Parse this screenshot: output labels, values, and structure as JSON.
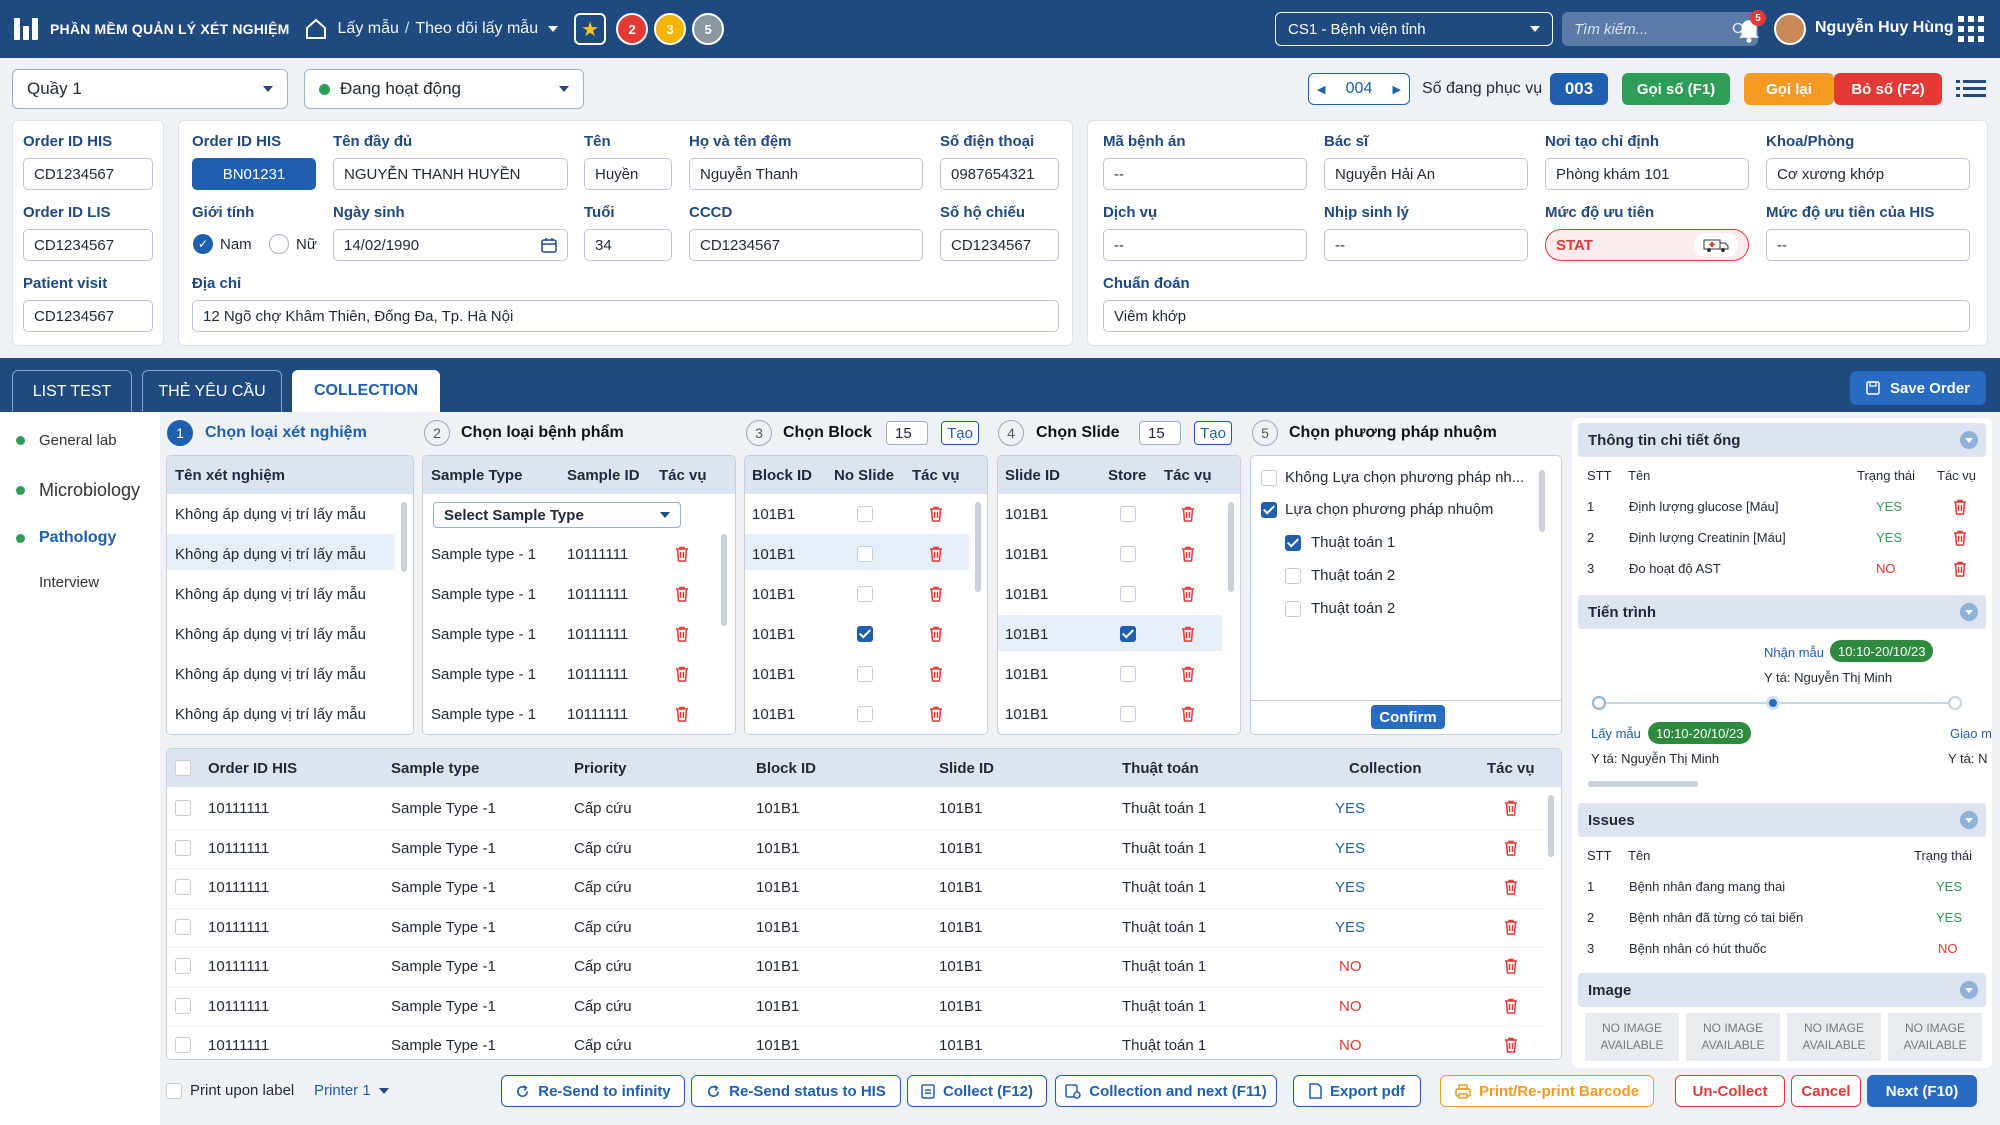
{
  "header": {
    "app_title": "PHẦN MỀM QUẢN LÝ XÉT NGHIỆM",
    "breadcrumb": [
      "Lấy mẫu",
      "Theo dõi lấy mẫu"
    ],
    "badges": [
      "2",
      "3",
      "5"
    ],
    "site": "CS1 - Bệnh viện tỉnh",
    "search_placeholder": "Tìm kiếm...",
    "notif_count": "5",
    "user": "Nguyễn Huy Hùng"
  },
  "toolbar": {
    "counter": "Quầy 1",
    "status": "Đang hoạt động",
    "queue_number": "004",
    "serving_label": "Số đang phục vụ",
    "serving_number": "003",
    "call_btn": "Gọi số (F1)",
    "recall_btn": "Gọi lại",
    "skip_btn": "Bỏ số (F2)"
  },
  "order_ids": {
    "his_label": "Order ID HIS",
    "his": "CD1234567",
    "lis_label": "Order ID LIS",
    "lis": "CD1234567",
    "visit_label": "Patient visit",
    "visit": "CD1234567"
  },
  "patient": {
    "his_label": "Order ID HIS",
    "his": "BN01231",
    "fullname_label": "Tên đầy đủ",
    "fullname": "NGUYỄN THANH HUYỀN",
    "name_label": "Tên",
    "name": "Huyền",
    "surname_label": "Họ và tên đệm",
    "surname": "Nguyễn Thanh",
    "phone_label": "Số điện thoại",
    "phone": "0987654321",
    "gender_label": "Giới tính",
    "male": "Nam",
    "female": "Nữ",
    "dob_label": "Ngày sinh",
    "dob": "14/02/1990",
    "age_label": "Tuổi",
    "age": "34",
    "id_label": "CCCD",
    "id": "CD1234567",
    "passport_label": "Số hộ chiếu",
    "passport": "CD1234567",
    "address_label": "Địa chỉ",
    "address": "12 Ngõ chợ Khâm Thiên, Đống Đa, Tp. Hà Nội"
  },
  "clinical": {
    "record_label": "Mã bệnh án",
    "record": "--",
    "doctor_label": "Bác sĩ",
    "doctor": "Nguyễn Hải An",
    "origin_label": "Nơi tạo chỉ định",
    "origin": "Phòng khám 101",
    "dept_label": "Khoa/Phòng",
    "dept": "Cơ xương khớp",
    "service_label": "Dịch vụ",
    "service": "--",
    "vitals_label": "Nhịp sinh lý",
    "vitals": "--",
    "priority_label": "Mức độ ưu tiên",
    "priority": "STAT",
    "his_priority_label": "Mức độ ưu tiên của HIS",
    "his_priority": "--",
    "diagnosis_label": "Chuẩn đoán",
    "diagnosis": "Viêm khớp"
  },
  "tabs": [
    "LIST TEST",
    "THẺ YÊU CẦU",
    "COLLECTION"
  ],
  "save_order": "Save Order",
  "nav": [
    "General lab",
    "Microbiology",
    "Pathology",
    "Interview"
  ],
  "steps": {
    "s1": "Chọn loại xét nghiệm",
    "s2": "Chọn loại bệnh phẩm",
    "s3": "Chọn Block",
    "s4": "Chọn Slide",
    "s5": "Chọn phương pháp nhuộm",
    "block_count": "15",
    "slide_count": "15",
    "create": "Tạo"
  },
  "test_table": {
    "header": "Tên xét nghiệm",
    "rows": [
      "Không áp dụng vị trí lấy mẫu",
      "Không áp dụng vị trí lấy mẫu",
      "Không áp dụng vị trí lấy mẫu",
      "Không áp dụng vị trí lấy mẫu",
      "Không áp dụng vị trí lấy mẫu",
      "Không áp dụng vị trí lấy mẫu"
    ]
  },
  "sample_table": {
    "headers": [
      "Sample Type",
      "Sample ID",
      "Tác vụ"
    ],
    "select": "Select Sample Type",
    "rows": [
      [
        "Sample type - 1",
        "10111111"
      ],
      [
        "Sample type - 1",
        "10111111"
      ],
      [
        "Sample type - 1",
        "10111111"
      ],
      [
        "Sample type - 1",
        "10111111"
      ],
      [
        "Sample type - 1",
        "10111111"
      ]
    ]
  },
  "block_table": {
    "headers": [
      "Block ID",
      "No Slide",
      "Tác vụ"
    ],
    "rows": [
      "101B1",
      "101B1",
      "101B1",
      "101B1",
      "101B1",
      "101B1"
    ]
  },
  "slide_table": {
    "headers": [
      "Slide ID",
      "Store",
      "Tác vụ"
    ],
    "rows": [
      "101B1",
      "101B1",
      "101B1",
      "101B1",
      "101B1",
      "101B1"
    ]
  },
  "stain": {
    "opt1": "Không Lựa chọn phương pháp nh...",
    "opt2": "Lựa chọn phương pháp nhuộm",
    "algos": [
      "Thuật toán 1",
      "Thuật toán 2",
      "Thuật toán 2"
    ],
    "confirm": "Confirm"
  },
  "main_table": {
    "headers": [
      "Order ID HIS",
      "Sample type",
      "Priority",
      "Block ID",
      "Slide ID",
      "Thuật toán",
      "Collection",
      "Tác vụ"
    ],
    "rows": [
      [
        "10111111",
        "Sample Type -1",
        "Cấp cứu",
        "101B1",
        "101B1",
        "Thuật toán 1",
        "YES"
      ],
      [
        "10111111",
        "Sample Type -1",
        "Cấp cứu",
        "101B1",
        "101B1",
        "Thuật toán 1",
        "YES"
      ],
      [
        "10111111",
        "Sample Type -1",
        "Cấp cứu",
        "101B1",
        "101B1",
        "Thuật toán 1",
        "YES"
      ],
      [
        "10111111",
        "Sample Type -1",
        "Cấp cứu",
        "101B1",
        "101B1",
        "Thuật toán 1",
        "YES"
      ],
      [
        "10111111",
        "Sample Type -1",
        "Cấp cứu",
        "101B1",
        "101B1",
        "Thuật toán 1",
        "NO"
      ],
      [
        "10111111",
        "Sample Type -1",
        "Cấp cứu",
        "101B1",
        "101B1",
        "Thuật toán 1",
        "NO"
      ],
      [
        "10111111",
        "Sample Type -1",
        "Cấp cứu",
        "101B1",
        "101B1",
        "Thuật toán 1",
        "NO"
      ]
    ]
  },
  "footer": {
    "print_label": "Print upon label",
    "printer": "Printer 1",
    "resend_inf": "Re-Send to infinity",
    "resend_his": "Re-Send status to HIS",
    "collect": "Collect (F12)",
    "collect_next": "Collection and next (F11)",
    "export": "Export pdf",
    "print": "Print/Re-print Barcode",
    "uncollect": "Un-Collect",
    "cancel": "Cancel",
    "next": "Next (F10)"
  },
  "right": {
    "tube_title": "Thông tin chi tiết ống",
    "tube_headers": [
      "STT",
      "Tên",
      "Trạng thái",
      "Tác vụ"
    ],
    "tubes": [
      [
        "1",
        "Định lượng glucose [Máu]",
        "YES"
      ],
      [
        "2",
        "Định lượng Creatinin [Máu]",
        "YES"
      ],
      [
        "3",
        "Đo hoạt độ AST",
        "NO"
      ]
    ],
    "progress_title": "Tiến trình",
    "p_receive": "Nhận mẫu",
    "p_receive_time": "10:10-20/10/23",
    "p_receive_nurse": "Y tá: Nguyễn Thị Minh",
    "p_take": "Lấy mẫu",
    "p_take_time": "10:10-20/10/23",
    "p_take_nurse": "Y tá: Nguyễn Thị Minh",
    "p_deliver": "Giao m",
    "p_deliver_nurse": "Y tá: N",
    "issues_title": "Issues",
    "issues_headers": [
      "STT",
      "Tên",
      "Trạng thái"
    ],
    "issues": [
      [
        "1",
        "Bệnh nhân đang mang thai",
        "YES"
      ],
      [
        "2",
        "Bệnh nhân đã từng có tai biến",
        "YES"
      ],
      [
        "3",
        "Bệnh nhân có hút thuốc",
        "NO"
      ]
    ],
    "image_title": "Image",
    "no_image": [
      "NO IMAGE",
      "AVAILABLE"
    ]
  },
  "colors": {
    "primary": "#1e4a80",
    "blue": "#1e5fb0",
    "green": "#2e9e57",
    "orange": "#f59a23",
    "red": "#e53935"
  }
}
